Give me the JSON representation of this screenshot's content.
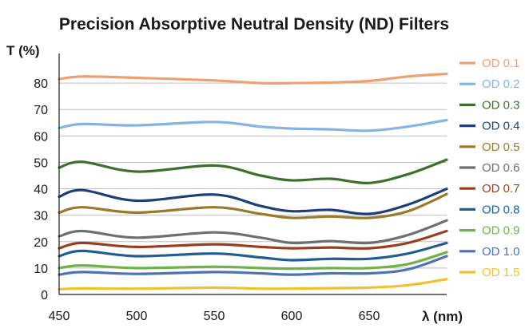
{
  "chart_data": {
    "type": "line",
    "title": "Precision Absorptive Neutral Density (ND) Filters",
    "ylabel": "T (%)",
    "xlabel": "λ (nm)",
    "xlim": [
      450,
      700
    ],
    "ylim": [
      0,
      90
    ],
    "x_ticks": [
      "450",
      "500",
      "550",
      "600",
      "650"
    ],
    "y_ticks": [
      "0",
      "10",
      "20",
      "30",
      "40",
      "50",
      "60",
      "70",
      "80"
    ],
    "x": [
      450,
      465,
      500,
      550,
      580,
      600,
      625,
      650,
      675,
      700
    ],
    "grid": "horizontal",
    "legend_position": "right",
    "series": [
      {
        "name": "OD 0.1",
        "color": "#f0a070",
        "values": [
          81.5,
          82.5,
          82.0,
          81.0,
          80.0,
          80.0,
          80.2,
          80.8,
          82.5,
          83.5
        ]
      },
      {
        "name": "OD 0.2",
        "color": "#86b4e2",
        "values": [
          63.0,
          64.5,
          64.0,
          65.3,
          63.5,
          62.8,
          62.5,
          62.0,
          63.5,
          66.0
        ]
      },
      {
        "name": "OD 0.3",
        "color": "#3f6f2d",
        "values": [
          48.0,
          50.2,
          46.5,
          48.8,
          45.0,
          43.2,
          43.8,
          42.2,
          45.5,
          51.0
        ]
      },
      {
        "name": "OD 0.4",
        "color": "#1f3f78",
        "values": [
          37.0,
          39.5,
          35.5,
          37.8,
          33.5,
          31.5,
          32.0,
          30.5,
          34.0,
          40.0
        ]
      },
      {
        "name": "OD 0.5",
        "color": "#9b7a2c",
        "values": [
          31.0,
          33.0,
          31.0,
          33.0,
          30.5,
          29.0,
          29.5,
          29.0,
          31.5,
          38.0
        ]
      },
      {
        "name": "OD 0.6",
        "color": "#6f6f6f",
        "values": [
          22.0,
          24.0,
          21.5,
          23.5,
          21.5,
          19.5,
          20.2,
          19.5,
          22.5,
          28.0
        ]
      },
      {
        "name": "OD 0.7",
        "color": "#9a3e1e",
        "values": [
          17.5,
          19.5,
          18.0,
          19.0,
          18.0,
          17.5,
          17.8,
          17.5,
          19.5,
          24.0
        ]
      },
      {
        "name": "OD 0.8",
        "color": "#1f5f8f",
        "values": [
          14.5,
          16.5,
          14.5,
          15.5,
          14.0,
          13.0,
          13.5,
          13.5,
          15.5,
          19.5
        ]
      },
      {
        "name": "OD 0.9",
        "color": "#6fb24a",
        "values": [
          10.0,
          11.0,
          10.0,
          10.5,
          10.0,
          9.8,
          10.0,
          10.0,
          11.5,
          16.0
        ]
      },
      {
        "name": "OD 1.0",
        "color": "#4e72b8",
        "values": [
          7.5,
          8.5,
          7.8,
          8.5,
          8.0,
          7.5,
          8.0,
          8.0,
          9.5,
          14.5
        ]
      },
      {
        "name": "OD 1.5",
        "color": "#f2c12e",
        "values": [
          2.0,
          2.3,
          2.2,
          2.6,
          2.2,
          2.2,
          2.4,
          2.6,
          3.5,
          5.8
        ]
      }
    ]
  }
}
